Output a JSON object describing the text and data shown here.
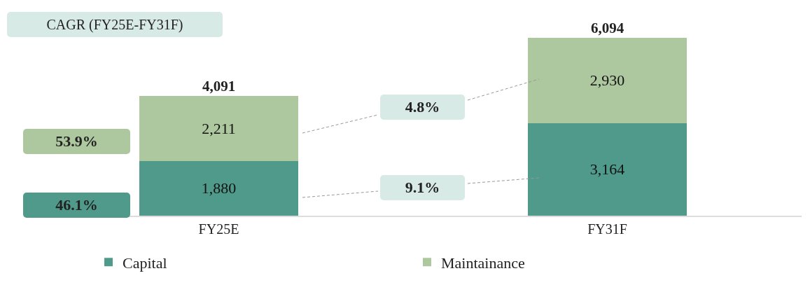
{
  "chart_data": {
    "type": "bar",
    "stacked": true,
    "categories": [
      "FY25E",
      "FY31F"
    ],
    "series": [
      {
        "name": "Capital",
        "color": "#4f9a8a",
        "values": [
          1880,
          3164
        ],
        "value_labels": [
          "1,880",
          "3,164"
        ]
      },
      {
        "name": "Maintainance",
        "color": "#adc79f",
        "values": [
          2211,
          2930
        ],
        "value_labels": [
          "2,211",
          "2,930"
        ]
      }
    ],
    "totals": [
      "4,091",
      "6,094"
    ],
    "legend": "bottom",
    "annotations": [
      "CAGR (FY25E-FY31F)",
      "53.9%",
      "46.1%",
      "4.8%",
      "9.1%"
    ]
  }
}
